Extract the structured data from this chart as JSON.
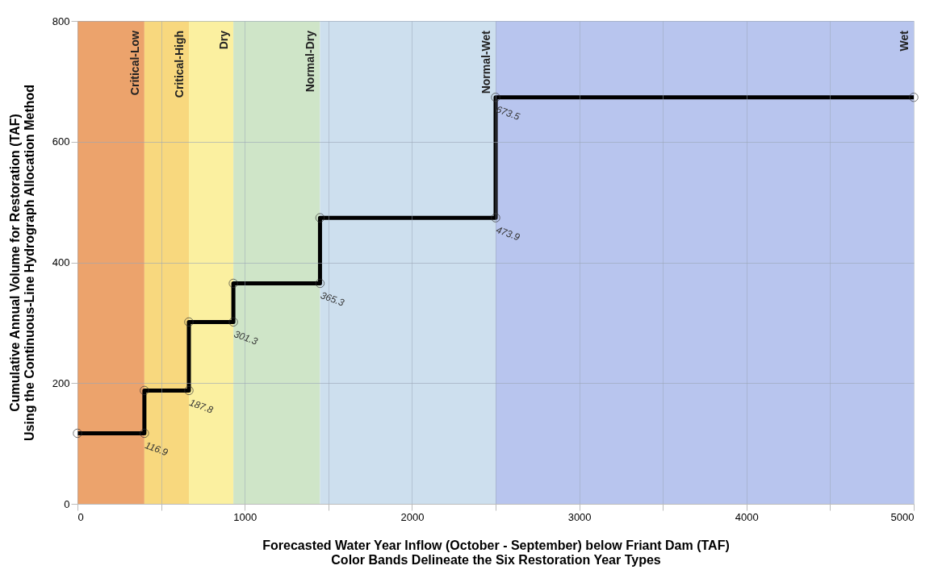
{
  "chart_data": {
    "type": "line",
    "xlabel": "Forecasted Water Year Inflow (October - September) below Friant Dam (TAF)\nColor Bands Delineate the Six Restoration Year Types",
    "ylabel": "Cumulative Annual Volume for Restoration (TAF)\nUsing the Continuous-Line Hydrograph Allocation Method",
    "series": [
      {
        "color": "#000000",
        "x": [
          0,
          400,
          400,
          666,
          666,
          932,
          932,
          1450,
          1450,
          2500,
          2500,
          5000
        ],
        "values": [
          116.9,
          116.9,
          187.8,
          187.8,
          301.3,
          301.3,
          365.3,
          365.3,
          473.9,
          473.9,
          673.5,
          673.5
        ],
        "value_labels": [
          null,
          "116.9",
          null,
          "187.8",
          null,
          "301.3",
          null,
          "365.3",
          null,
          "473.9",
          "673.5",
          null
        ]
      }
    ],
    "bands": [
      {
        "axis": "x",
        "from": 0,
        "to": 400,
        "label": "Critical-Low",
        "color": "#eca36c"
      },
      {
        "axis": "x",
        "from": 400,
        "to": 666,
        "label": "Critical-High",
        "color": "#f8d87e"
      },
      {
        "axis": "x",
        "from": 666,
        "to": 932,
        "label": "Dry",
        "color": "#fbf0a0"
      },
      {
        "axis": "x",
        "from": 932,
        "to": 1450,
        "label": "Normal-Dry",
        "color": "#cfe5c8"
      },
      {
        "axis": "x",
        "from": 1450,
        "to": 2500,
        "label": "Normal-Wet",
        "color": "#cddfee"
      },
      {
        "axis": "x",
        "from": 2500,
        "to": 5000,
        "label": "Wet",
        "color": "#b8c5ee"
      }
    ],
    "xlim": [
      0,
      5000
    ],
    "xticks": [
      0,
      {
        "value": 500,
        "label": null
      },
      1000,
      {
        "value": 1500,
        "label": null
      },
      2000,
      {
        "value": 2500,
        "label": null
      },
      3000,
      {
        "value": 3500,
        "label": null
      },
      4000,
      {
        "value": 4500,
        "label": null
      },
      5000
    ],
    "ylim": [
      0,
      800
    ],
    "yticks": [
      0,
      200,
      400,
      600,
      800
    ],
    "grid": true,
    "marker": "circle",
    "line_style": "solid"
  }
}
